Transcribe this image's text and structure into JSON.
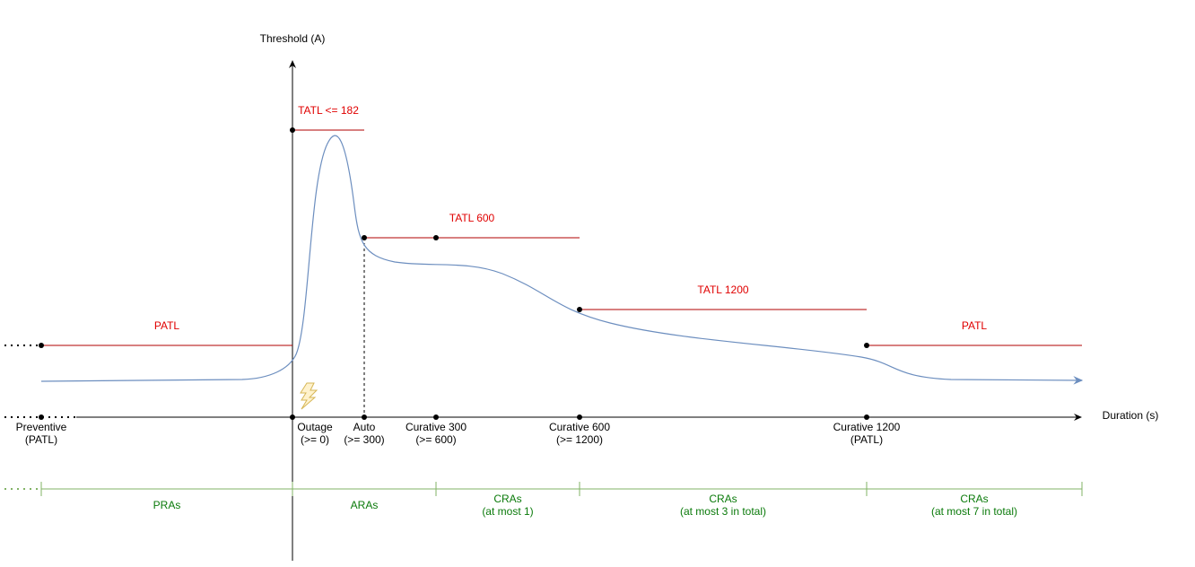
{
  "axes": {
    "y_label": "Threshold (A)",
    "x_label": "Duration (s)"
  },
  "thresholds": [
    {
      "label": "PATL"
    },
    {
      "label": "TATL <= 182"
    },
    {
      "label": "TATL 600"
    },
    {
      "label": "TATL 1200"
    },
    {
      "label": "PATL"
    }
  ],
  "instants": [
    {
      "lines": [
        "Preventive",
        "(PATL)"
      ]
    },
    {
      "lines": [
        "Outage",
        "(>= 0)"
      ]
    },
    {
      "lines": [
        "Auto",
        "(>= 300)"
      ]
    },
    {
      "lines": [
        "Curative 300",
        "(>= 600)"
      ]
    },
    {
      "lines": [
        "Curative 600",
        "(>= 1200)"
      ]
    },
    {
      "lines": [
        "Curative 1200",
        "(PATL)"
      ]
    }
  ],
  "remedial_actions": [
    {
      "lines": [
        "PRAs"
      ]
    },
    {
      "lines": [
        "ARAs"
      ]
    },
    {
      "lines": [
        "CRAs",
        "(at most 1)"
      ]
    },
    {
      "lines": [
        "CRAs",
        "(at most 3 in total)"
      ]
    },
    {
      "lines": [
        "CRAs",
        "(at most 7 in total)"
      ]
    }
  ]
}
